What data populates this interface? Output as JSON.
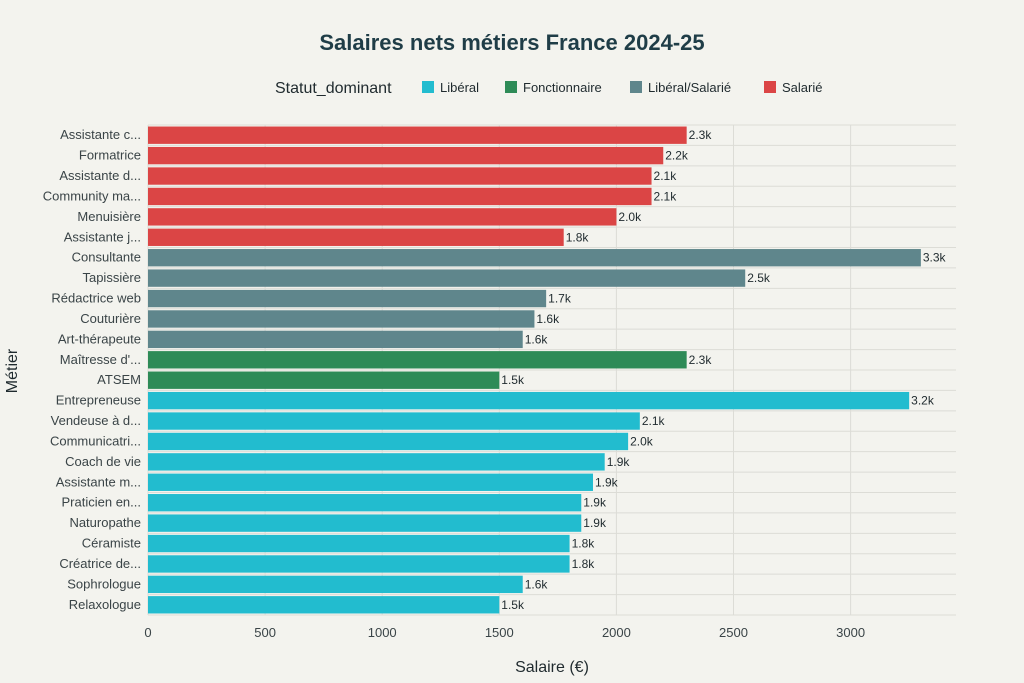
{
  "chart_data": {
    "type": "bar",
    "orientation": "horizontal",
    "title": "Salaires nets métiers France 2024-25",
    "xlabel": "Salaire (€)",
    "ylabel": "Métier",
    "xlim": [
      0,
      3450
    ],
    "xticks": [
      0,
      500,
      1000,
      1500,
      2000,
      2500,
      3000
    ],
    "xtick_labels": [
      "0",
      "500",
      "1000",
      "1500",
      "2000",
      "2500",
      "3000"
    ],
    "grid": true,
    "legend": {
      "title": "Statut_dominant",
      "position": "top",
      "entries": [
        {
          "name": "Libéral",
          "color": "#22bccf"
        },
        {
          "name": "Fonctionnaire",
          "color": "#2e8b57"
        },
        {
          "name": "Libéral/Salarié",
          "color": "#5f868c"
        },
        {
          "name": "Salarié",
          "color": "#db4545"
        }
      ]
    },
    "bars": [
      {
        "category": "Assistante c...",
        "value": 2300,
        "label": "2.3k",
        "group": "Salarié"
      },
      {
        "category": "Formatrice",
        "value": 2200,
        "label": "2.2k",
        "group": "Salarié"
      },
      {
        "category": "Assistante d...",
        "value": 2150,
        "label": "2.1k",
        "group": "Salarié"
      },
      {
        "category": "Community ma...",
        "value": 2150,
        "label": "2.1k",
        "group": "Salarié"
      },
      {
        "category": "Menuisière",
        "value": 2000,
        "label": "2.0k",
        "group": "Salarié"
      },
      {
        "category": "Assistante j...",
        "value": 1775,
        "label": "1.8k",
        "group": "Salarié"
      },
      {
        "category": "Consultante",
        "value": 3300,
        "label": "3.3k",
        "group": "Libéral/Salarié"
      },
      {
        "category": "Tapissière",
        "value": 2550,
        "label": "2.5k",
        "group": "Libéral/Salarié"
      },
      {
        "category": "Rédactrice web",
        "value": 1700,
        "label": "1.7k",
        "group": "Libéral/Salarié"
      },
      {
        "category": "Couturière",
        "value": 1650,
        "label": "1.6k",
        "group": "Libéral/Salarié"
      },
      {
        "category": "Art-thérapeute",
        "value": 1600,
        "label": "1.6k",
        "group": "Libéral/Salarié"
      },
      {
        "category": "Maîtresse d'...",
        "value": 2300,
        "label": "2.3k",
        "group": "Fonctionnaire"
      },
      {
        "category": "ATSEM",
        "value": 1500,
        "label": "1.5k",
        "group": "Fonctionnaire"
      },
      {
        "category": "Entrepreneuse",
        "value": 3250,
        "label": "3.2k",
        "group": "Libéral"
      },
      {
        "category": "Vendeuse à d...",
        "value": 2100,
        "label": "2.1k",
        "group": "Libéral"
      },
      {
        "category": "Communicatri...",
        "value": 2050,
        "label": "2.0k",
        "group": "Libéral"
      },
      {
        "category": "Coach de vie",
        "value": 1950,
        "label": "1.9k",
        "group": "Libéral"
      },
      {
        "category": "Assistante m...",
        "value": 1900,
        "label": "1.9k",
        "group": "Libéral"
      },
      {
        "category": "Praticien en...",
        "value": 1850,
        "label": "1.9k",
        "group": "Libéral"
      },
      {
        "category": "Naturopathe",
        "value": 1850,
        "label": "1.9k",
        "group": "Libéral"
      },
      {
        "category": "Céramiste",
        "value": 1800,
        "label": "1.8k",
        "group": "Libéral"
      },
      {
        "category": "Créatrice de...",
        "value": 1800,
        "label": "1.8k",
        "group": "Libéral"
      },
      {
        "category": "Sophrologue",
        "value": 1600,
        "label": "1.6k",
        "group": "Libéral"
      },
      {
        "category": "Relaxologue",
        "value": 1500,
        "label": "1.5k",
        "group": "Libéral"
      }
    ]
  }
}
